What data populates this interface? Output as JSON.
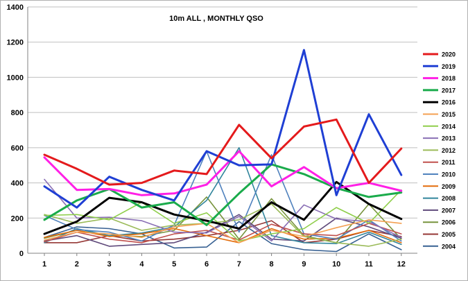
{
  "chart_data": {
    "type": "line",
    "title": "10m ALL , MONTHLY QSO",
    "xlabel": "",
    "ylabel": "",
    "categories": [
      "1",
      "2",
      "3",
      "4",
      "5",
      "6",
      "7",
      "8",
      "9",
      "10",
      "11",
      "12"
    ],
    "ylim": [
      0,
      1400
    ],
    "yticks": [
      0,
      200,
      400,
      600,
      800,
      1000,
      1200,
      1400
    ],
    "grid": true,
    "legend_position": "right",
    "series": [
      {
        "name": "2020",
        "color": "#e41a1c",
        "width": 3,
        "values": [
          560,
          480,
          390,
          400,
          470,
          450,
          730,
          540,
          720,
          760,
          400,
          595
        ]
      },
      {
        "name": "2019",
        "color": "#1f3fd4",
        "width": 3,
        "values": [
          380,
          260,
          435,
          360,
          300,
          580,
          500,
          505,
          1155,
          330,
          790,
          445
        ]
      },
      {
        "name": "2018",
        "color": "#ff20e6",
        "width": 3,
        "values": [
          545,
          360,
          365,
          330,
          340,
          390,
          580,
          380,
          490,
          370,
          400,
          355
        ]
      },
      {
        "name": "2017",
        "color": "#1aab4b",
        "width": 3,
        "values": [
          190,
          300,
          365,
          260,
          290,
          160,
          340,
          505,
          450,
          370,
          320,
          345
        ]
      },
      {
        "name": "2016",
        "color": "#000000",
        "width": 3,
        "values": [
          110,
          180,
          315,
          290,
          220,
          185,
          140,
          290,
          190,
          405,
          280,
          195
        ]
      },
      {
        "name": "2015",
        "color": "#f4a052",
        "width": 1.6,
        "values": [
          75,
          120,
          110,
          90,
          150,
          170,
          60,
          130,
          95,
          145,
          190,
          170
        ]
      },
      {
        "name": "2014",
        "color": "#8fce4a",
        "width": 1.6,
        "values": [
          215,
          220,
          190,
          290,
          170,
          230,
          70,
          110,
          140,
          260,
          170,
          360
        ]
      },
      {
        "name": "2013",
        "color": "#8a6fb5",
        "width": 1.6,
        "values": [
          420,
          200,
          205,
          185,
          120,
          115,
          210,
          70,
          275,
          195,
          180,
          90
        ]
      },
      {
        "name": "2012",
        "color": "#9bbb59",
        "width": 1.6,
        "values": [
          220,
          170,
          200,
          130,
          160,
          170,
          190,
          280,
          95,
          60,
          40,
          80
        ]
      },
      {
        "name": "2011",
        "color": "#c0504d",
        "width": 1.6,
        "values": [
          65,
          120,
          80,
          60,
          110,
          130,
          75,
          165,
          110,
          100,
          170,
          110
        ]
      },
      {
        "name": "2010",
        "color": "#4f81bd",
        "width": 1.6,
        "values": [
          215,
          135,
          120,
          70,
          160,
          580,
          120,
          560,
          110,
          80,
          190,
          70
        ]
      },
      {
        "name": "2009",
        "color": "#e36c0a",
        "width": 1.6,
        "values": [
          90,
          130,
          95,
          110,
          140,
          100,
          60,
          140,
          80,
          85,
          130,
          60
        ]
      },
      {
        "name": "2008",
        "color": "#31859c",
        "width": 1.6,
        "values": [
          60,
          140,
          100,
          115,
          150,
          300,
          600,
          100,
          60,
          55,
          120,
          50
        ]
      },
      {
        "name": "2007",
        "color": "#604a7b",
        "width": 1.6,
        "values": [
          70,
          100,
          40,
          50,
          60,
          120,
          220,
          80,
          70,
          200,
          150,
          85
        ]
      },
      {
        "name": "2006",
        "color": "#77933c",
        "width": 1.6,
        "values": [
          85,
          130,
          100,
          95,
          130,
          320,
          80,
          310,
          100,
          60,
          280,
          80
        ]
      },
      {
        "name": "2005",
        "color": "#953735",
        "width": 1.6,
        "values": [
          60,
          60,
          100,
          70,
          80,
          100,
          130,
          185,
          60,
          80,
          130,
          95
        ]
      },
      {
        "name": "2004",
        "color": "#376092",
        "width": 1.6,
        "values": [
          90,
          150,
          140,
          110,
          30,
          35,
          180,
          55,
          20,
          10,
          110,
          20
        ]
      }
    ]
  }
}
